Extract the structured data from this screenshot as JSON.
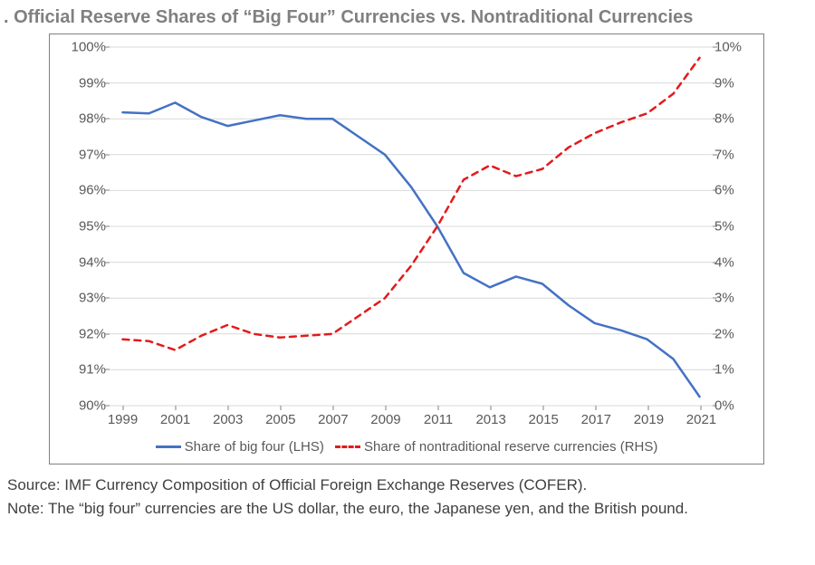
{
  "title": ". Official Reserve Shares of “Big Four” Currencies vs. Nontraditional Currencies",
  "chart": {
    "type": "line-dual-axis",
    "background_color": "#ffffff",
    "border_color": "#808080",
    "grid_color": "#d9d9d9",
    "grid_on": true,
    "tick_fontsize": 15,
    "tick_color": "#595959",
    "left_axis": {
      "min": 90,
      "max": 100,
      "step": 1,
      "suffix": "%",
      "ticks": [
        "90%",
        "91%",
        "92%",
        "93%",
        "94%",
        "95%",
        "96%",
        "97%",
        "98%",
        "99%",
        "100%"
      ]
    },
    "right_axis": {
      "min": 0,
      "max": 10,
      "step": 1,
      "suffix": "%",
      "ticks": [
        "0%",
        "1%",
        "2%",
        "3%",
        "4%",
        "5%",
        "6%",
        "7%",
        "8%",
        "9%",
        "10%"
      ]
    },
    "x_axis": {
      "years": [
        1999,
        2000,
        2001,
        2002,
        2003,
        2004,
        2005,
        2006,
        2007,
        2008,
        2009,
        2010,
        2011,
        2012,
        2013,
        2014,
        2015,
        2016,
        2017,
        2018,
        2019,
        2020,
        2021
      ],
      "tick_labels": [
        "1999",
        "2001",
        "2003",
        "2005",
        "2007",
        "2009",
        "2011",
        "2013",
        "2015",
        "2017",
        "2019",
        "2021"
      ],
      "tick_years": [
        1999,
        2001,
        2003,
        2005,
        2007,
        2009,
        2011,
        2013,
        2015,
        2017,
        2019,
        2021
      ]
    },
    "series": [
      {
        "id": "big_four",
        "label": "Share of big four (LHS)",
        "axis": "left",
        "color": "#4472c4",
        "line_width": 2.5,
        "dash": "solid",
        "values": [
          98.18,
          98.15,
          98.45,
          98.05,
          97.8,
          97.95,
          98.1,
          98.0,
          98.0,
          97.5,
          97.0,
          96.1,
          95.0,
          93.7,
          93.3,
          93.6,
          93.4,
          92.8,
          92.3,
          92.1,
          91.85,
          91.3,
          90.25
        ]
      },
      {
        "id": "nontraditional",
        "label": "Share of nontraditional reserve currencies (RHS)",
        "axis": "right",
        "color": "#e31a1c",
        "line_width": 2.5,
        "dash": "dashed",
        "dash_pattern": "7 6",
        "values": [
          1.85,
          1.8,
          1.55,
          1.95,
          2.25,
          2.0,
          1.9,
          1.95,
          2.0,
          2.5,
          3.0,
          3.9,
          5.0,
          6.3,
          6.7,
          6.4,
          6.6,
          7.2,
          7.6,
          7.9,
          8.15,
          8.7,
          9.7
        ]
      }
    ],
    "legend": {
      "position": "bottom",
      "fontsize": 15
    }
  },
  "footer": {
    "source": "Source: IMF Currency Composition of Official Foreign Exchange Reserves (COFER).",
    "note": "Note: The “big four” currencies are the US dollar, the euro, the Japanese yen, and the British pound."
  }
}
